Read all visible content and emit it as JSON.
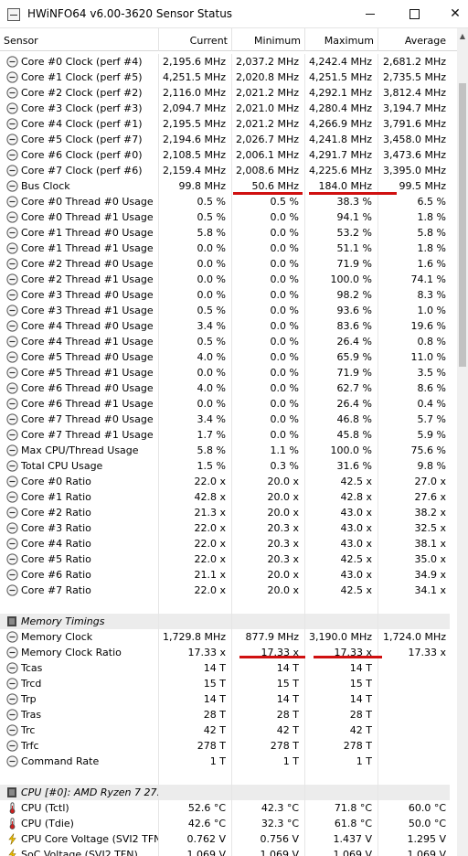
{
  "window": {
    "title": "HWiNFO64 v6.00-3620 Sensor Status",
    "minimize_label": "minimize",
    "maximize_label": "maximize",
    "close_label": "✕"
  },
  "columns": {
    "sensor": "Sensor",
    "current": "Current",
    "minimum": "Minimum",
    "maximum": "Maximum",
    "average": "Average"
  },
  "rows": [
    {
      "type": "sensor",
      "icon": "clock",
      "name": "Core #0 Clock (perf #4)",
      "current": "2,195.6 MHz",
      "minimum": "2,037.2 MHz",
      "maximum": "4,242.4 MHz",
      "average": "2,681.2 MHz"
    },
    {
      "type": "sensor",
      "icon": "clock",
      "name": "Core #1 Clock (perf #5)",
      "current": "4,251.5 MHz",
      "minimum": "2,020.8 MHz",
      "maximum": "4,251.5 MHz",
      "average": "2,735.5 MHz"
    },
    {
      "type": "sensor",
      "icon": "clock",
      "name": "Core #2 Clock (perf #2)",
      "current": "2,116.0 MHz",
      "minimum": "2,021.2 MHz",
      "maximum": "4,292.1 MHz",
      "average": "3,812.4 MHz"
    },
    {
      "type": "sensor",
      "icon": "clock",
      "name": "Core #3 Clock (perf #3)",
      "current": "2,094.7 MHz",
      "minimum": "2,021.0 MHz",
      "maximum": "4,280.4 MHz",
      "average": "3,194.7 MHz"
    },
    {
      "type": "sensor",
      "icon": "clock",
      "name": "Core #4 Clock (perf #1)",
      "current": "2,195.5 MHz",
      "minimum": "2,021.2 MHz",
      "maximum": "4,266.9 MHz",
      "average": "3,791.6 MHz"
    },
    {
      "type": "sensor",
      "icon": "clock",
      "name": "Core #5 Clock (perf #7)",
      "current": "2,194.6 MHz",
      "minimum": "2,026.7 MHz",
      "maximum": "4,241.8 MHz",
      "average": "3,458.0 MHz"
    },
    {
      "type": "sensor",
      "icon": "clock",
      "name": "Core #6 Clock (perf #0)",
      "current": "2,108.5 MHz",
      "minimum": "2,006.1 MHz",
      "maximum": "4,291.7 MHz",
      "average": "3,473.6 MHz"
    },
    {
      "type": "sensor",
      "icon": "clock",
      "name": "Core #7 Clock (perf #6)",
      "current": "2,159.4 MHz",
      "minimum": "2,008.6 MHz",
      "maximum": "4,225.6 MHz",
      "average": "3,395.0 MHz"
    },
    {
      "type": "sensor",
      "icon": "clock",
      "name": "Bus Clock",
      "current": "99.8 MHz",
      "minimum": "50.6 MHz",
      "maximum": "184.0 MHz",
      "average": "99.5 MHz"
    },
    {
      "type": "sensor",
      "icon": "clock",
      "name": "Core #0 Thread #0 Usage",
      "current": "0.5 %",
      "minimum": "0.5 %",
      "maximum": "38.3 %",
      "average": "6.5 %"
    },
    {
      "type": "sensor",
      "icon": "clock",
      "name": "Core #0 Thread #1 Usage",
      "current": "0.5 %",
      "minimum": "0.0 %",
      "maximum": "94.1 %",
      "average": "1.8 %"
    },
    {
      "type": "sensor",
      "icon": "clock",
      "name": "Core #1 Thread #0 Usage",
      "current": "5.8 %",
      "minimum": "0.0 %",
      "maximum": "53.2 %",
      "average": "5.8 %"
    },
    {
      "type": "sensor",
      "icon": "clock",
      "name": "Core #1 Thread #1 Usage",
      "current": "0.0 %",
      "minimum": "0.0 %",
      "maximum": "51.1 %",
      "average": "1.8 %"
    },
    {
      "type": "sensor",
      "icon": "clock",
      "name": "Core #2 Thread #0 Usage",
      "current": "0.0 %",
      "minimum": "0.0 %",
      "maximum": "71.9 %",
      "average": "1.6 %"
    },
    {
      "type": "sensor",
      "icon": "clock",
      "name": "Core #2 Thread #1 Usage",
      "current": "0.0 %",
      "minimum": "0.0 %",
      "maximum": "100.0 %",
      "average": "74.1 %"
    },
    {
      "type": "sensor",
      "icon": "clock",
      "name": "Core #3 Thread #0 Usage",
      "current": "0.0 %",
      "minimum": "0.0 %",
      "maximum": "98.2 %",
      "average": "8.3 %"
    },
    {
      "type": "sensor",
      "icon": "clock",
      "name": "Core #3 Thread #1 Usage",
      "current": "0.5 %",
      "minimum": "0.0 %",
      "maximum": "93.6 %",
      "average": "1.0 %"
    },
    {
      "type": "sensor",
      "icon": "clock",
      "name": "Core #4 Thread #0 Usage",
      "current": "3.4 %",
      "minimum": "0.0 %",
      "maximum": "83.6 %",
      "average": "19.6 %"
    },
    {
      "type": "sensor",
      "icon": "clock",
      "name": "Core #4 Thread #1 Usage",
      "current": "0.5 %",
      "minimum": "0.0 %",
      "maximum": "26.4 %",
      "average": "0.8 %"
    },
    {
      "type": "sensor",
      "icon": "clock",
      "name": "Core #5 Thread #0 Usage",
      "current": "4.0 %",
      "minimum": "0.0 %",
      "maximum": "65.9 %",
      "average": "11.0 %"
    },
    {
      "type": "sensor",
      "icon": "clock",
      "name": "Core #5 Thread #1 Usage",
      "current": "0.0 %",
      "minimum": "0.0 %",
      "maximum": "71.9 %",
      "average": "3.5 %"
    },
    {
      "type": "sensor",
      "icon": "clock",
      "name": "Core #6 Thread #0 Usage",
      "current": "4.0 %",
      "minimum": "0.0 %",
      "maximum": "62.7 %",
      "average": "8.6 %"
    },
    {
      "type": "sensor",
      "icon": "clock",
      "name": "Core #6 Thread #1 Usage",
      "current": "0.0 %",
      "minimum": "0.0 %",
      "maximum": "26.4 %",
      "average": "0.4 %"
    },
    {
      "type": "sensor",
      "icon": "clock",
      "name": "Core #7 Thread #0 Usage",
      "current": "3.4 %",
      "minimum": "0.0 %",
      "maximum": "46.8 %",
      "average": "5.7 %"
    },
    {
      "type": "sensor",
      "icon": "clock",
      "name": "Core #7 Thread #1 Usage",
      "current": "1.7 %",
      "minimum": "0.0 %",
      "maximum": "45.8 %",
      "average": "5.9 %"
    },
    {
      "type": "sensor",
      "icon": "clock",
      "name": "Max CPU/Thread Usage",
      "current": "5.8 %",
      "minimum": "1.1 %",
      "maximum": "100.0 %",
      "average": "75.6 %"
    },
    {
      "type": "sensor",
      "icon": "clock",
      "name": "Total CPU Usage",
      "current": "1.5 %",
      "minimum": "0.3 %",
      "maximum": "31.6 %",
      "average": "9.8 %"
    },
    {
      "type": "sensor",
      "icon": "clock",
      "name": "Core #0 Ratio",
      "current": "22.0 x",
      "minimum": "20.0 x",
      "maximum": "42.5 x",
      "average": "27.0 x"
    },
    {
      "type": "sensor",
      "icon": "clock",
      "name": "Core #1 Ratio",
      "current": "42.8 x",
      "minimum": "20.0 x",
      "maximum": "42.8 x",
      "average": "27.6 x"
    },
    {
      "type": "sensor",
      "icon": "clock",
      "name": "Core #2 Ratio",
      "current": "21.3 x",
      "minimum": "20.0 x",
      "maximum": "43.0 x",
      "average": "38.2 x"
    },
    {
      "type": "sensor",
      "icon": "clock",
      "name": "Core #3 Ratio",
      "current": "22.0 x",
      "minimum": "20.3 x",
      "maximum": "43.0 x",
      "average": "32.5 x"
    },
    {
      "type": "sensor",
      "icon": "clock",
      "name": "Core #4 Ratio",
      "current": "22.0 x",
      "minimum": "20.3 x",
      "maximum": "43.0 x",
      "average": "38.1 x"
    },
    {
      "type": "sensor",
      "icon": "clock",
      "name": "Core #5 Ratio",
      "current": "22.0 x",
      "minimum": "20.3 x",
      "maximum": "42.5 x",
      "average": "35.0 x"
    },
    {
      "type": "sensor",
      "icon": "clock",
      "name": "Core #6 Ratio",
      "current": "21.1 x",
      "minimum": "20.0 x",
      "maximum": "43.0 x",
      "average": "34.9 x"
    },
    {
      "type": "sensor",
      "icon": "clock",
      "name": "Core #7 Ratio",
      "current": "22.0 x",
      "minimum": "20.0 x",
      "maximum": "42.5 x",
      "average": "34.1 x"
    },
    {
      "type": "blank",
      "name": "",
      "current": "",
      "minimum": "",
      "maximum": "",
      "average": ""
    },
    {
      "type": "group",
      "icon": "memory",
      "name": "Memory Timings",
      "current": "",
      "minimum": "",
      "maximum": "",
      "average": ""
    },
    {
      "type": "sensor",
      "icon": "clock",
      "name": "Memory Clock",
      "current": "1,729.8 MHz",
      "minimum": "877.9 MHz",
      "maximum": "3,190.0 MHz",
      "average": "1,724.0 MHz"
    },
    {
      "type": "sensor",
      "icon": "clock",
      "name": "Memory Clock Ratio",
      "current": "17.33 x",
      "minimum": "17.33 x",
      "maximum": "17.33 x",
      "average": "17.33 x"
    },
    {
      "type": "sensor",
      "icon": "clock",
      "name": "Tcas",
      "current": "14 T",
      "minimum": "14 T",
      "maximum": "14 T",
      "average": ""
    },
    {
      "type": "sensor",
      "icon": "clock",
      "name": "Trcd",
      "current": "15 T",
      "minimum": "15 T",
      "maximum": "15 T",
      "average": ""
    },
    {
      "type": "sensor",
      "icon": "clock",
      "name": "Trp",
      "current": "14 T",
      "minimum": "14 T",
      "maximum": "14 T",
      "average": ""
    },
    {
      "type": "sensor",
      "icon": "clock",
      "name": "Tras",
      "current": "28 T",
      "minimum": "28 T",
      "maximum": "28 T",
      "average": ""
    },
    {
      "type": "sensor",
      "icon": "clock",
      "name": "Trc",
      "current": "42 T",
      "minimum": "42 T",
      "maximum": "42 T",
      "average": ""
    },
    {
      "type": "sensor",
      "icon": "clock",
      "name": "Trfc",
      "current": "278 T",
      "minimum": "278 T",
      "maximum": "278 T",
      "average": ""
    },
    {
      "type": "sensor",
      "icon": "clock",
      "name": "Command Rate",
      "current": "1 T",
      "minimum": "1 T",
      "maximum": "1 T",
      "average": ""
    },
    {
      "type": "blank",
      "name": "",
      "current": "",
      "minimum": "",
      "maximum": "",
      "average": ""
    },
    {
      "type": "group",
      "icon": "cpu",
      "name": "CPU [#0]: AMD Ryzen 7 27...",
      "current": "",
      "minimum": "",
      "maximum": "",
      "average": ""
    },
    {
      "type": "sensor",
      "icon": "thermometer",
      "name": "CPU (Tctl)",
      "current": "52.6 °C",
      "minimum": "42.3 °C",
      "maximum": "71.8 °C",
      "average": "60.0 °C"
    },
    {
      "type": "sensor",
      "icon": "thermometer",
      "name": "CPU (Tdie)",
      "current": "42.6 °C",
      "minimum": "32.3 °C",
      "maximum": "61.8 °C",
      "average": "50.0 °C"
    },
    {
      "type": "sensor",
      "icon": "voltage",
      "name": "CPU Core Voltage (SVI2 TFN)",
      "current": "0.762 V",
      "minimum": "0.756 V",
      "maximum": "1.437 V",
      "average": "1.295 V"
    },
    {
      "type": "sensor",
      "icon": "voltage",
      "name": "SoC Voltage (SVI2 TFN)",
      "current": "1.069 V",
      "minimum": "1.069 V",
      "maximum": "1.069 V",
      "average": "1.069 V"
    }
  ],
  "colors": {
    "highlight_underline": "#d01010",
    "group_row_bg": "#ececec"
  }
}
